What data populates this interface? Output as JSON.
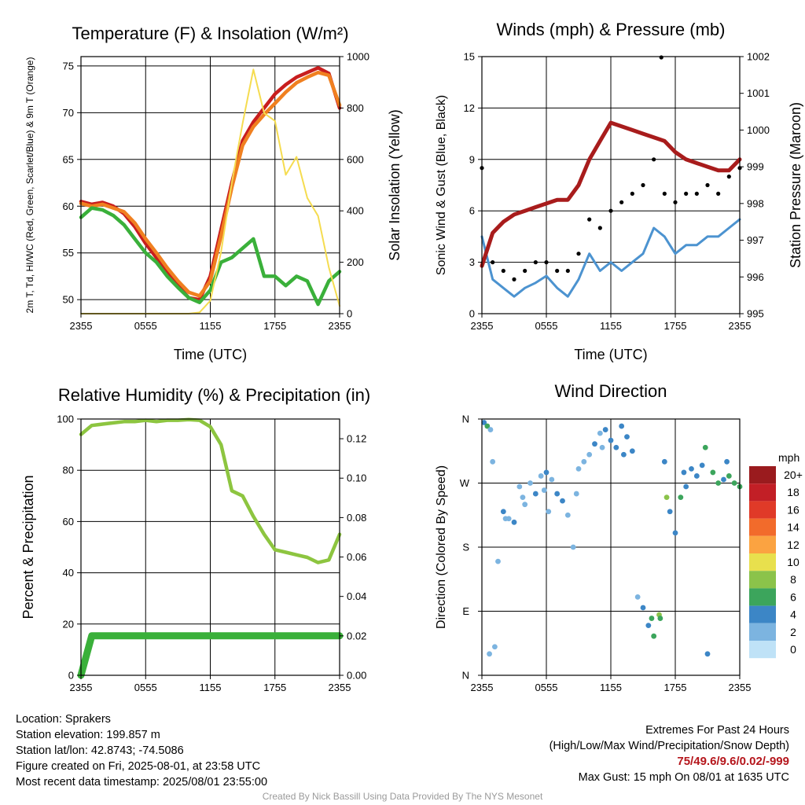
{
  "colors": {
    "temp": "#c81e1e",
    "dewpoint": "#3ab03a",
    "heatindex": "#f47a28",
    "temp9m": "#f08020",
    "insolation": "#f5dc50",
    "wind": "#4c93d0",
    "gust": "#000000",
    "pressure": "#a81c1c",
    "rh": "#8dc540",
    "precip": "#3ab03a"
  },
  "chart_data": [
    {
      "id": "temp",
      "type": "line",
      "title": "Temperature (F) & Insolation (W/m²)",
      "xlabel": "Time (UTC)",
      "ylabel": "2m T, Td, HI/WC (Red, Green, Scarlet/Blue) & 9m T (Orange)",
      "y2label": "Solar Insolation (Yellow)",
      "xticks": [
        "2355",
        "0555",
        "1155",
        "1755",
        "2355"
      ],
      "x": [
        0,
        1,
        2,
        3,
        4,
        5,
        6,
        7,
        8,
        9,
        10,
        11,
        12,
        13,
        14,
        15,
        16,
        17,
        18,
        19,
        20,
        21,
        22,
        23,
        24
      ],
      "ylim": [
        48.5,
        76
      ],
      "yticks": [
        50,
        55,
        60,
        65,
        70,
        75
      ],
      "y2lim": [
        0,
        1000
      ],
      "y2ticks": [
        0,
        200,
        400,
        600,
        800,
        1000
      ],
      "series": [
        {
          "name": "2m T",
          "axis": "left",
          "color": "#c81e1e",
          "values": [
            60.5,
            60.2,
            60.4,
            60.0,
            59.2,
            57.8,
            56.0,
            54.5,
            53.0,
            51.5,
            50.2,
            50.0,
            52.5,
            57.5,
            62.5,
            67.0,
            69.0,
            70.5,
            72.0,
            73.0,
            73.8,
            74.3,
            74.8,
            74.2,
            70.5
          ]
        },
        {
          "name": "9m T",
          "axis": "left",
          "color": "#f08020",
          "values": [
            60.3,
            60.0,
            60.2,
            59.8,
            59.4,
            58.2,
            56.5,
            55.0,
            53.4,
            52.0,
            50.8,
            50.4,
            52.0,
            56.8,
            62.0,
            66.5,
            68.5,
            69.8,
            71.0,
            72.2,
            73.2,
            73.8,
            74.3,
            74.0,
            70.8
          ]
        },
        {
          "name": "Td",
          "axis": "left",
          "color": "#3ab03a",
          "values": [
            58.8,
            59.8,
            59.6,
            59.0,
            58.0,
            56.5,
            55.0,
            54.0,
            52.5,
            51.3,
            50.2,
            49.7,
            51.0,
            54.0,
            54.5,
            55.5,
            56.5,
            52.5,
            52.5,
            51.5,
            52.5,
            52.0,
            49.5,
            52.0,
            53.0
          ]
        },
        {
          "name": "Solar Insolation",
          "axis": "right",
          "color": "#f5dc50",
          "values": [
            0,
            0,
            0,
            0,
            0,
            0,
            0,
            0,
            0,
            0,
            0,
            5,
            50,
            240,
            510,
            740,
            950,
            780,
            750,
            540,
            610,
            450,
            380,
            180,
            30
          ]
        }
      ]
    },
    {
      "id": "wind",
      "type": "line",
      "title": "Winds (mph) & Pressure (mb)",
      "xlabel": "Time (UTC)",
      "ylabel": "Sonic Wind & Gust (Blue, Black)",
      "y2label": "Station Pressure (Maroon)",
      "xticks": [
        "2355",
        "0555",
        "1155",
        "1755",
        "2355"
      ],
      "x": [
        0,
        1,
        2,
        3,
        4,
        5,
        6,
        7,
        8,
        9,
        10,
        11,
        12,
        13,
        14,
        15,
        16,
        17,
        18,
        19,
        20,
        21,
        22,
        23,
        24
      ],
      "ylim": [
        0,
        15
      ],
      "yticks": [
        0,
        3,
        6,
        9,
        12,
        15
      ],
      "y2lim": [
        995,
        1002
      ],
      "y2ticks": [
        995,
        996,
        997,
        998,
        999,
        1000,
        1001,
        1002
      ],
      "series": [
        {
          "name": "Sonic Wind",
          "axis": "left",
          "color": "#4c93d0",
          "values": [
            4.5,
            2.0,
            1.5,
            1.0,
            1.5,
            1.8,
            2.2,
            1.5,
            1.0,
            2.0,
            3.5,
            2.5,
            3.0,
            2.5,
            3.0,
            3.5,
            5.0,
            4.5,
            3.5,
            4.0,
            4.0,
            4.5,
            4.5,
            5.0,
            5.5
          ]
        },
        {
          "name": "Gust",
          "axis": "left",
          "color": "#000000",
          "values": [
            8.5,
            3.0,
            2.5,
            2.0,
            2.5,
            3.0,
            3.0,
            2.5,
            2.5,
            3.5,
            5.5,
            5.0,
            6.0,
            6.5,
            7.0,
            7.5,
            9.0,
            7.0,
            6.5,
            7.0,
            7.0,
            7.5,
            7.0,
            8.0,
            8.5
          ]
        },
        {
          "name": "Station Pressure",
          "axis": "right",
          "color": "#a81c1c",
          "values": [
            996.3,
            997.2,
            997.5,
            997.7,
            997.8,
            997.9,
            998.0,
            998.1,
            998.1,
            998.5,
            999.2,
            999.7,
            1000.2,
            1000.1,
            1000.0,
            999.9,
            999.8,
            999.7,
            999.4,
            999.2,
            999.1,
            999.0,
            998.9,
            998.9,
            999.2
          ]
        }
      ],
      "max_gust_point": {
        "x": 16.7,
        "y": 15
      }
    },
    {
      "id": "rh",
      "type": "line",
      "title": "Relative Humidity (%) & Precipitation (in)",
      "xlabel": "",
      "ylabel": "Percent & Precipitation",
      "xticks": [
        "2355",
        "0555",
        "1155",
        "1755",
        "2355"
      ],
      "x": [
        0,
        1,
        2,
        3,
        4,
        5,
        6,
        7,
        8,
        9,
        10,
        11,
        12,
        13,
        14,
        15,
        16,
        17,
        18,
        19,
        20,
        21,
        22,
        23,
        24
      ],
      "ylim": [
        0,
        100
      ],
      "yticks": [
        0,
        20,
        40,
        60,
        80,
        100
      ],
      "y2lim": [
        0,
        0.13
      ],
      "y2ticks": [
        0.0,
        0.02,
        0.04,
        0.06,
        0.08,
        0.1,
        0.12
      ],
      "series": [
        {
          "name": "Relative Humidity",
          "axis": "left",
          "color": "#8dc540",
          "values": [
            94,
            97.5,
            98,
            98.5,
            99,
            99,
            99.5,
            99,
            99.5,
            99.5,
            99.8,
            99.5,
            97,
            90,
            72,
            70,
            62,
            55,
            49,
            48,
            47,
            46,
            44,
            45,
            55
          ]
        },
        {
          "name": "Precipitation",
          "axis": "right",
          "color": "#3ab03a",
          "values": [
            0.0,
            0.02,
            0.02,
            0.02,
            0.02,
            0.02,
            0.02,
            0.02,
            0.02,
            0.02,
            0.02,
            0.02,
            0.02,
            0.02,
            0.02,
            0.02,
            0.02,
            0.02,
            0.02,
            0.02,
            0.02,
            0.02,
            0.02,
            0.02,
            0.02
          ]
        }
      ]
    },
    {
      "id": "wdir",
      "type": "scatter",
      "title": "Wind Direction",
      "ylabel": "Direction (Colored By Speed)",
      "xticks": [
        "2355",
        "0555",
        "1155",
        "1755",
        "2355"
      ],
      "yticks": [
        "N",
        "E",
        "S",
        "W",
        "N"
      ],
      "ylim": [
        0,
        360
      ],
      "legend_title": "mph",
      "legend_labels": [
        "20+",
        "18",
        "16",
        "14",
        "12",
        "10",
        "8",
        "6",
        "4",
        "2",
        "0"
      ],
      "legend_colors": [
        "#9a1b1e",
        "#c21f26",
        "#e03a28",
        "#f26b2b",
        "#fba341",
        "#e8e04d",
        "#8bc34a",
        "#3ca55c",
        "#3c86c6",
        "#7cb4e0",
        "#bfe2f7"
      ],
      "points": [
        [
          0.2,
          355,
          3
        ],
        [
          0.5,
          350,
          5
        ],
        [
          0.8,
          345,
          2
        ],
        [
          1.0,
          300,
          1
        ],
        [
          1.5,
          160,
          1
        ],
        [
          2.0,
          230,
          3
        ],
        [
          2.5,
          220,
          2
        ],
        [
          3.0,
          215,
          3
        ],
        [
          3.5,
          265,
          2
        ],
        [
          4.0,
          240,
          1
        ],
        [
          4.5,
          270,
          2
        ],
        [
          5.0,
          255,
          3
        ],
        [
          5.5,
          280,
          2
        ],
        [
          6.0,
          285,
          3
        ],
        [
          6.5,
          275,
          2
        ],
        [
          7.0,
          255,
          3
        ],
        [
          7.5,
          245,
          3
        ],
        [
          8.0,
          225,
          1
        ],
        [
          8.5,
          180,
          2
        ],
        [
          9.0,
          290,
          2
        ],
        [
          9.5,
          300,
          2
        ],
        [
          10.0,
          310,
          1
        ],
        [
          10.5,
          325,
          3
        ],
        [
          11.0,
          340,
          2
        ],
        [
          11.5,
          345,
          4
        ],
        [
          12.0,
          330,
          3
        ],
        [
          12.5,
          320,
          3
        ],
        [
          13.0,
          350,
          3
        ],
        [
          13.5,
          335,
          4
        ],
        [
          14.0,
          315,
          3
        ],
        [
          14.5,
          110,
          2
        ],
        [
          15.0,
          95,
          4
        ],
        [
          15.5,
          70,
          3
        ],
        [
          16.0,
          55,
          5
        ],
        [
          16.5,
          85,
          8
        ],
        [
          17.0,
          300,
          4
        ],
        [
          17.5,
          230,
          3
        ],
        [
          18.0,
          200,
          4
        ],
        [
          18.5,
          250,
          5
        ],
        [
          19.0,
          265,
          3
        ],
        [
          19.5,
          290,
          4
        ],
        [
          20.0,
          280,
          3
        ],
        [
          20.5,
          295,
          4
        ],
        [
          21.0,
          30,
          3
        ],
        [
          21.5,
          285,
          5
        ],
        [
          22.0,
          270,
          6
        ],
        [
          22.5,
          275,
          4
        ],
        [
          23.0,
          280,
          5
        ],
        [
          23.5,
          270,
          6
        ],
        [
          24.0,
          265,
          5
        ],
        [
          0.7,
          30,
          2
        ],
        [
          1.2,
          40,
          1
        ],
        [
          2.2,
          220,
          2
        ],
        [
          3.8,
          250,
          2
        ],
        [
          5.8,
          260,
          2
        ],
        [
          6.2,
          230,
          1
        ],
        [
          8.8,
          255,
          2
        ],
        [
          11.2,
          320,
          1
        ],
        [
          13.2,
          310,
          3
        ],
        [
          15.8,
          80,
          5
        ],
        [
          16.6,
          80,
          6
        ],
        [
          17.2,
          250,
          7
        ],
        [
          18.8,
          285,
          3
        ],
        [
          20.8,
          320,
          6
        ],
        [
          22.8,
          300,
          4
        ]
      ]
    }
  ],
  "info": {
    "location": "Location: Sprakers",
    "elevation": "Station elevation: 199.857 m",
    "latlon": "Station lat/lon: 42.8743; -74.5086",
    "created": "Figure created on Fri, 2025-08-01, at 23:58 UTC",
    "recent": "Most recent data timestamp: 2025/08/01 23:55:00",
    "extremes_title": "Extremes For Past 24 Hours",
    "extremes_sub": "(High/Low/Max Wind/Precipitation/Snow Depth)",
    "extremes_values": "75/49.6/9.6/0.02/-999",
    "max_gust": "Max Gust: 15 mph On 08/01 at 1635 UTC",
    "credit": "Created By Nick Bassill Using Data Provided By The NYS Mesonet"
  }
}
